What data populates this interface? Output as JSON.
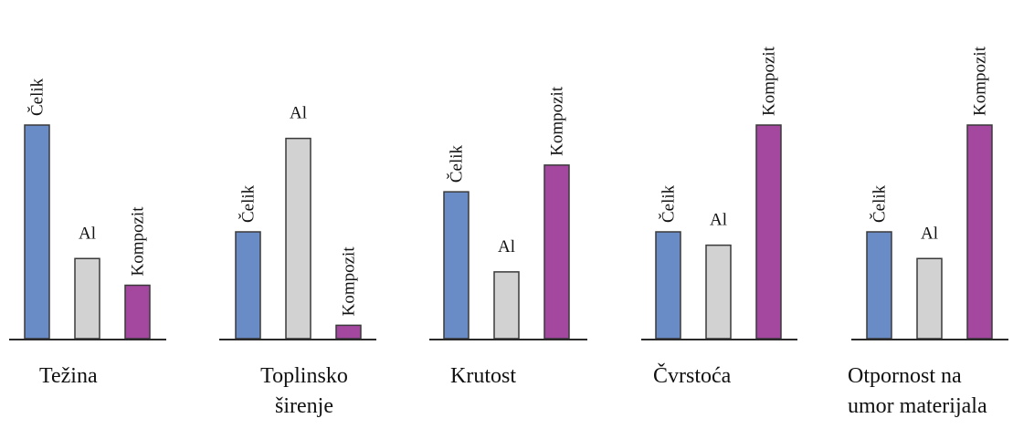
{
  "chart_data": [
    {
      "type": "bar",
      "title": "Težina",
      "categories": [
        "Čelik",
        "Al",
        "Kompozit"
      ],
      "values": [
        80,
        30,
        20
      ],
      "ylim": [
        0,
        80
      ]
    },
    {
      "type": "bar",
      "title": "Toplinsko širenje",
      "categories": [
        "Čelik",
        "Al",
        "Kompozit"
      ],
      "values": [
        40,
        75,
        5
      ],
      "ylim": [
        0,
        80
      ]
    },
    {
      "type": "bar",
      "title": "Krutost",
      "categories": [
        "Čelik",
        "Al",
        "Kompozit"
      ],
      "values": [
        55,
        25,
        65
      ],
      "ylim": [
        0,
        80
      ]
    },
    {
      "type": "bar",
      "title": "Čvrstoća",
      "categories": [
        "Čelik",
        "Al",
        "Kompozit"
      ],
      "values": [
        40,
        35,
        80
      ],
      "ylim": [
        0,
        80
      ]
    },
    {
      "type": "bar",
      "title": "Otpornost na umor materijala",
      "categories": [
        "Čelik",
        "Al",
        "Kompozit"
      ],
      "values": [
        40,
        30,
        80
      ],
      "ylim": [
        0,
        80
      ]
    }
  ],
  "colors": {
    "Čelik": "#6a8cc6",
    "Al": "#d2d2d2",
    "Kompozit": "#a4479f",
    "axis": "#2a2a2a",
    "bar_outline": "#3a3a3a"
  }
}
